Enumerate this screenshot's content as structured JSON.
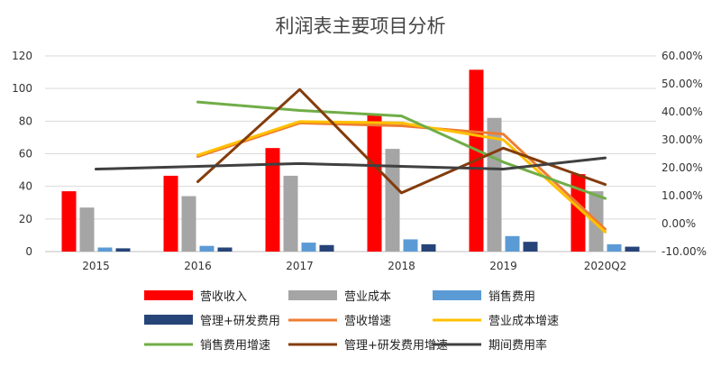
{
  "chart_data": {
    "type": "bar",
    "title": "利润表主要项目分析",
    "categories": [
      "2015",
      "2016",
      "2017",
      "2018",
      "2019",
      "2020Q2"
    ],
    "y_left": {
      "range": [
        0,
        120
      ],
      "ticks": [
        "0",
        "20",
        "40",
        "60",
        "80",
        "100",
        "120"
      ]
    },
    "y_right": {
      "range": [
        -0.1,
        0.6
      ],
      "ticks": [
        "-10.00%",
        "0.00%",
        "10.00%",
        "20.00%",
        "30.00%",
        "40.00%",
        "50.00%",
        "60.00%"
      ]
    },
    "grid": true,
    "legend_position": "bottom",
    "bar_series": [
      {
        "name": "营收收入",
        "color": "#ff0000",
        "values": [
          37,
          46.5,
          63.5,
          84,
          111.5,
          47.5
        ]
      },
      {
        "name": "营业成本",
        "color": "#a5a5a5",
        "values": [
          27,
          34,
          46.5,
          63,
          82,
          37
        ]
      },
      {
        "name": "销售费用",
        "color": "#5b9bd5",
        "values": [
          2.5,
          3.5,
          5.5,
          7.5,
          9.5,
          4.5
        ]
      },
      {
        "name": "管理+研发费用",
        "color": "#264478",
        "values": [
          2,
          2.5,
          4,
          4.5,
          6,
          3
        ]
      }
    ],
    "line_series": [
      {
        "name": "营收增速",
        "color": "#ed7d31",
        "values": [
          null,
          0.24,
          0.36,
          0.35,
          0.32,
          -0.02
        ]
      },
      {
        "name": "营业成本增速",
        "color": "#ffc000",
        "values": [
          null,
          0.245,
          0.365,
          0.36,
          0.3,
          -0.03
        ]
      },
      {
        "name": "销售费用增速",
        "color": "#70ad47",
        "values": [
          null,
          0.435,
          0.405,
          0.385,
          0.22,
          0.09
        ]
      },
      {
        "name": "管理+研发费用增速",
        "color": "#843c0c",
        "values": [
          null,
          0.15,
          0.48,
          0.11,
          0.27,
          0.14
        ]
      },
      {
        "name": "期间费用率",
        "color": "#404040",
        "values": [
          0.195,
          0.205,
          0.215,
          0.205,
          0.195,
          0.235
        ]
      }
    ]
  }
}
